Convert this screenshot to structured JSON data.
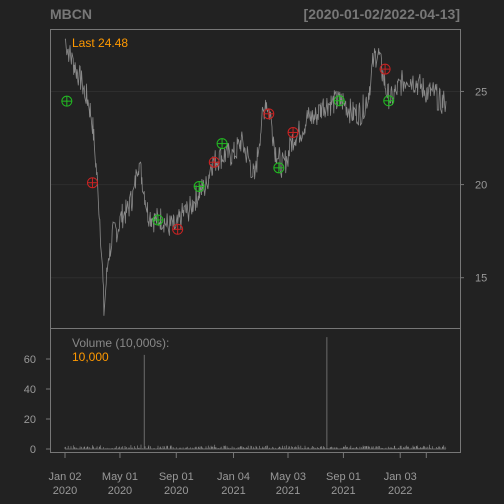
{
  "chart_data": {
    "type": "line",
    "ticker": "MBCN",
    "date_range": "[2020-01-02/2022-04-13]",
    "price_legend": "Last 24.48",
    "volume_legend_title": "Volume (10,000s):",
    "volume_legend_value": "10,000",
    "price_axis": {
      "ticks": [
        15,
        20,
        25
      ],
      "ylim": [
        12.3,
        28.3
      ]
    },
    "volume_axis": {
      "ticks": [
        0,
        20,
        40,
        60
      ],
      "ylim": [
        -2,
        80
      ]
    },
    "x_ticks": [
      {
        "date": "2020-01-02",
        "label1": "Jan 02",
        "label2": "2020"
      },
      {
        "date": "2020-05-01",
        "label1": "May 01",
        "label2": "2020"
      },
      {
        "date": "2020-09-01",
        "label1": "Sep 01",
        "label2": "2020"
      },
      {
        "date": "2021-01-04",
        "label1": "Jan 04",
        "label2": "2021"
      },
      {
        "date": "2021-05-03",
        "label1": "May 03",
        "label2": "2021"
      },
      {
        "date": "2021-09-01",
        "label1": "Sep 01",
        "label2": "2021"
      },
      {
        "date": "2022-01-03",
        "label1": "Jan 03",
        "label2": "2022"
      }
    ],
    "x_minor_ticks": [
      "2022-03-01"
    ],
    "date_start": "2020-01-02",
    "date_end": "2022-04-13",
    "price_series": [
      [
        "2020-01-02",
        27.8
      ],
      [
        "2020-01-15",
        26.8
      ],
      [
        "2020-02-01",
        25.9
      ],
      [
        "2020-02-20",
        24.6
      ],
      [
        "2020-03-01",
        23.6
      ],
      [
        "2020-03-10",
        21.0
      ],
      [
        "2020-03-18",
        18.2
      ],
      [
        "2020-03-23",
        16.0
      ],
      [
        "2020-03-27",
        13.2
      ],
      [
        "2020-04-05",
        16.0
      ],
      [
        "2020-04-15",
        17.3
      ],
      [
        "2020-04-25",
        17.6
      ],
      [
        "2020-05-05",
        18.3
      ],
      [
        "2020-05-18",
        18.6
      ],
      [
        "2020-06-01",
        19.6
      ],
      [
        "2020-06-10",
        21.3
      ],
      [
        "2020-06-18",
        20.4
      ],
      [
        "2020-07-01",
        18.5
      ],
      [
        "2020-07-15",
        18.1
      ],
      [
        "2020-08-01",
        18.2
      ],
      [
        "2020-08-15",
        17.8
      ],
      [
        "2020-09-01",
        17.7
      ],
      [
        "2020-09-15",
        18.4
      ],
      [
        "2020-10-01",
        18.7
      ],
      [
        "2020-10-20",
        19.6
      ],
      [
        "2020-11-05",
        19.9
      ],
      [
        "2020-11-16",
        21.1
      ],
      [
        "2020-12-01",
        21.4
      ],
      [
        "2020-12-15",
        21.6
      ],
      [
        "2021-01-04",
        21.6
      ],
      [
        "2021-01-20",
        22.3
      ],
      [
        "2021-02-05",
        21.5
      ],
      [
        "2021-02-15",
        20.6
      ],
      [
        "2021-02-20",
        20.3
      ],
      [
        "2021-03-01",
        22.4
      ],
      [
        "2021-03-15",
        24.6
      ],
      [
        "2021-03-25",
        23.8
      ],
      [
        "2021-04-05",
        21.9
      ],
      [
        "2021-04-20",
        21.0
      ],
      [
        "2021-05-01",
        21.4
      ],
      [
        "2021-05-15",
        22.6
      ],
      [
        "2021-06-01",
        22.9
      ],
      [
        "2021-06-15",
        23.6
      ],
      [
        "2021-07-01",
        23.6
      ],
      [
        "2021-07-20",
        24.3
      ],
      [
        "2021-08-10",
        24.4
      ],
      [
        "2021-09-01",
        24.5
      ],
      [
        "2021-09-20",
        23.8
      ],
      [
        "2021-10-10",
        23.9
      ],
      [
        "2021-10-25",
        24.8
      ],
      [
        "2021-11-05",
        26.6
      ],
      [
        "2021-11-15",
        27.2
      ],
      [
        "2021-11-25",
        26.0
      ],
      [
        "2021-12-07",
        24.8
      ],
      [
        "2021-12-15",
        24.6
      ],
      [
        "2022-01-01",
        25.3
      ],
      [
        "2022-01-20",
        25.8
      ],
      [
        "2022-02-10",
        25.4
      ],
      [
        "2022-03-01",
        25.0
      ],
      [
        "2022-03-20",
        24.9
      ],
      [
        "2022-04-01",
        24.4
      ],
      [
        "2022-04-13",
        24.48
      ]
    ],
    "buy_signals": [
      [
        "2020-01-06",
        24.48
      ],
      [
        "2020-07-23",
        18.1
      ],
      [
        "2020-10-21",
        19.9
      ],
      [
        "2020-12-10",
        22.2
      ],
      [
        "2021-04-13",
        20.9
      ],
      [
        "2021-08-23",
        24.5
      ],
      [
        "2021-12-09",
        24.5
      ]
    ],
    "sell_signals": [
      [
        "2020-03-02",
        20.1
      ],
      [
        "2020-09-04",
        17.6
      ],
      [
        "2020-11-23",
        21.2
      ],
      [
        "2021-03-22",
        23.8
      ],
      [
        "2021-05-14",
        22.8
      ],
      [
        "2021-12-01",
        26.2
      ]
    ],
    "volume_spikes": [
      [
        "2020-06-23",
        62.7
      ],
      [
        "2021-07-27",
        74.6
      ],
      [
        "2020-12-20",
        7
      ],
      [
        "2021-11-20",
        8
      ]
    ]
  }
}
